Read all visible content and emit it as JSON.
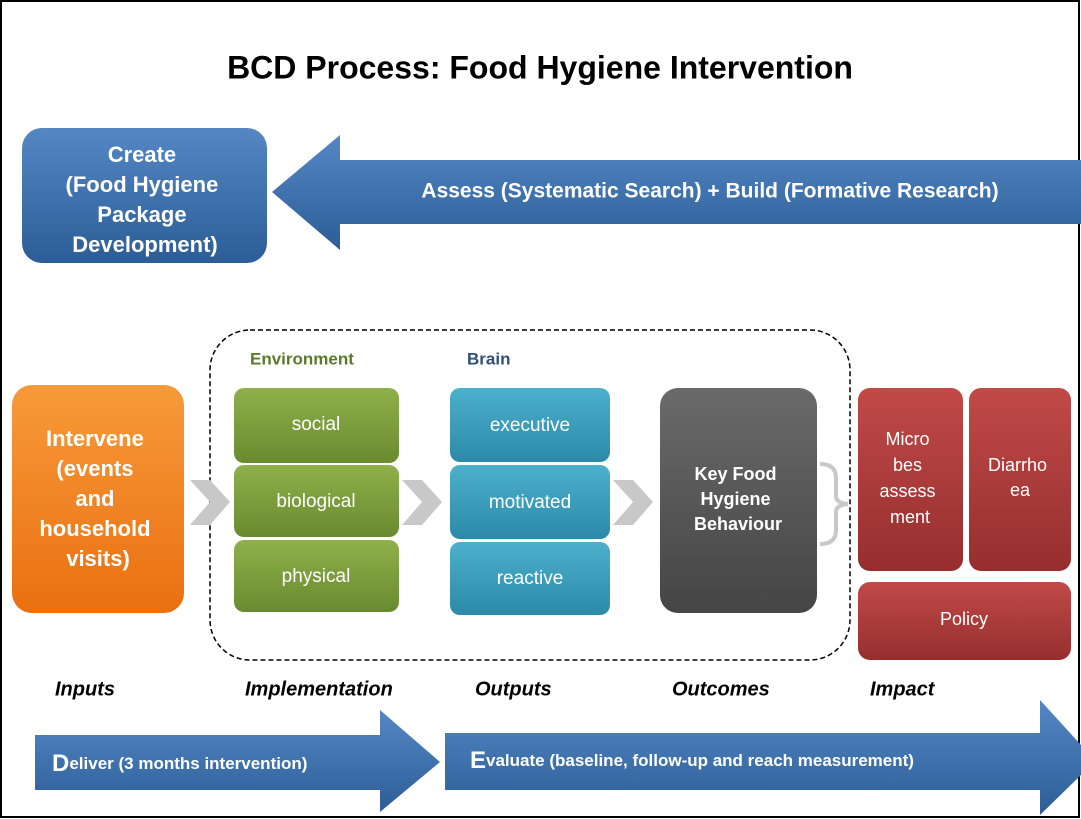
{
  "title": "BCD Process: Food Hygiene Intervention",
  "create": [
    "Create",
    "(Food Hygiene",
    "Package",
    "Development)"
  ],
  "assess": "Assess (Systematic Search) + Build (Formative Research)",
  "intervene": [
    "Intervene",
    "(events",
    "and",
    "household",
    "visits)"
  ],
  "environment": {
    "label": "Environment",
    "items": [
      "social",
      "biological",
      "physical"
    ]
  },
  "brain": {
    "label": "Brain",
    "items": [
      "executive",
      "motivated",
      "reactive"
    ]
  },
  "behaviour": [
    "Key Food",
    "Hygiene",
    "Behaviour"
  ],
  "impact": {
    "microbes": [
      "Micro",
      "bes",
      "assess",
      "ment"
    ],
    "diarrhoea": [
      "Diarrho",
      "ea"
    ],
    "policy": "Policy"
  },
  "stages": [
    "Inputs",
    "Implementation",
    "Outputs",
    "Outcomes",
    "Impact"
  ],
  "deliver": {
    "initial": "D",
    "rest": "eliver (3 months intervention)"
  },
  "evaluate": {
    "initial": "E",
    "rest": "valuate (baseline, follow-up and reach measurement)"
  }
}
